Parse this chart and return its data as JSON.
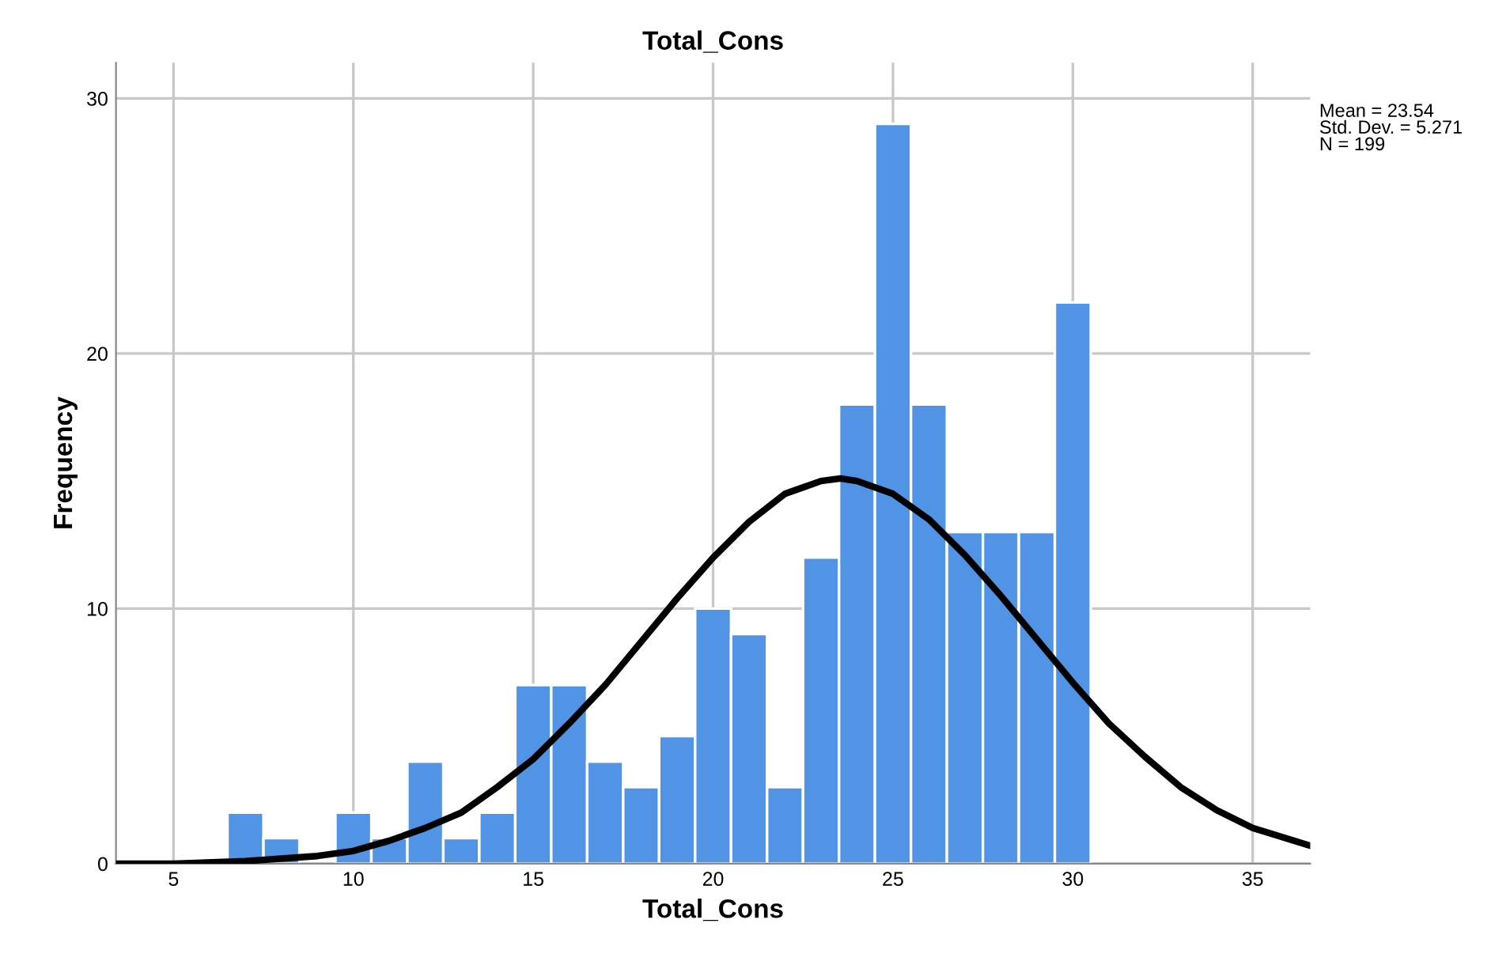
{
  "chart_data": {
    "type": "histogram",
    "title": "Total_Cons",
    "xlabel": "Total_Cons",
    "ylabel": "Frequency",
    "series": [
      {
        "color": "#5193e5",
        "bins": [
          6.5,
          7.5,
          8.5,
          9.5,
          10.5,
          11.5,
          12.5,
          13.5,
          14.5,
          15.5,
          16.5,
          17.5,
          18.5,
          19.5,
          20.5,
          21.5,
          22.5,
          23.5,
          24.5,
          25.5,
          26.5,
          27.5,
          28.5,
          29.5,
          30.5
        ],
        "values": [
          2,
          1,
          0,
          2,
          1,
          4,
          1,
          2,
          7,
          7,
          4,
          3,
          5,
          10,
          9,
          3,
          12,
          18,
          29,
          18,
          13,
          13,
          13,
          22
        ]
      },
      {
        "type": "line",
        "color": "#000000",
        "x": [
          3.4,
          5,
          7,
          9,
          10,
          11,
          12,
          13,
          14,
          15,
          16,
          17,
          18,
          19,
          20,
          21,
          22,
          23,
          23.54,
          24,
          25,
          26,
          27,
          28,
          29,
          30,
          31,
          32,
          33,
          34,
          35,
          36.6
        ],
        "values": [
          0.0,
          0.0,
          0.1,
          0.3,
          0.5,
          0.9,
          1.4,
          2.0,
          3.0,
          4.1,
          5.5,
          7.0,
          8.7,
          10.4,
          12.0,
          13.4,
          14.5,
          15.0,
          15.1,
          15.0,
          14.5,
          13.5,
          12.1,
          10.5,
          8.8,
          7.1,
          5.5,
          4.2,
          3.0,
          2.1,
          1.4,
          0.7
        ]
      }
    ],
    "xlim": [
      3.4,
      36.6
    ],
    "xticks": [
      5,
      10,
      15,
      20,
      25,
      30,
      35
    ],
    "ylim": [
      0,
      31.4
    ],
    "yticks": [
      0,
      10,
      20,
      30
    ],
    "grid": true,
    "legend": false,
    "annotations": [
      "Mean = 23.54\nStd. Dev. = 5.271\nN = 199"
    ]
  }
}
